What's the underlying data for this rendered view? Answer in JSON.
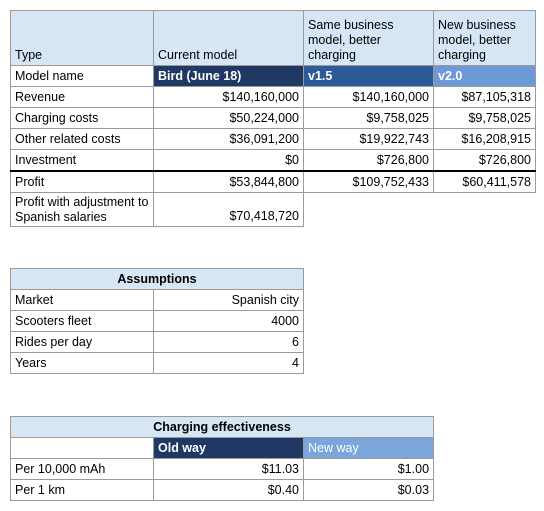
{
  "main_table": {
    "headers": {
      "type": "Type",
      "current": "Current model",
      "same": "Same business model, better charging",
      "new": "New business model, better charging"
    },
    "model_row": {
      "label": "Model name",
      "current": "Bird (June 18)",
      "same": "v1.5",
      "new": "v2.0"
    },
    "rows": [
      {
        "label": "Revenue",
        "current": "$140,160,000",
        "same": "$140,160,000",
        "new": "$87,105,318"
      },
      {
        "label": "Charging costs",
        "current": "$50,224,000",
        "same": "$9,758,025",
        "new": "$9,758,025"
      },
      {
        "label": "Other related costs",
        "current": "$36,091,200",
        "same": "$19,922,743",
        "new": "$16,208,915"
      },
      {
        "label": "Investment",
        "current": "$0",
        "same": "$726,800",
        "new": "$726,800"
      }
    ],
    "profit": {
      "label": "Profit",
      "current": "$53,844,800",
      "same": "$109,752,433",
      "new": "$60,411,578"
    },
    "profit_adj": {
      "label": "Profit with adjustment to Spanish salaries",
      "current": "$70,418,720"
    }
  },
  "assumptions": {
    "title": "Assumptions",
    "rows": [
      {
        "label": "Market",
        "value": "Spanish city"
      },
      {
        "label": "Scooters fleet",
        "value": "4000"
      },
      {
        "label": "Rides per day",
        "value": "6"
      },
      {
        "label": "Years",
        "value": "4"
      }
    ]
  },
  "charging": {
    "title": "Charging effectiveness",
    "old_label": "Old way",
    "new_label": "New way",
    "rows": [
      {
        "label": "Per 10,000 mAh",
        "old": "$11.03",
        "new": "$1.00"
      },
      {
        "label": "Per 1 km",
        "old": "$0.40",
        "new": "$0.03"
      }
    ]
  }
}
